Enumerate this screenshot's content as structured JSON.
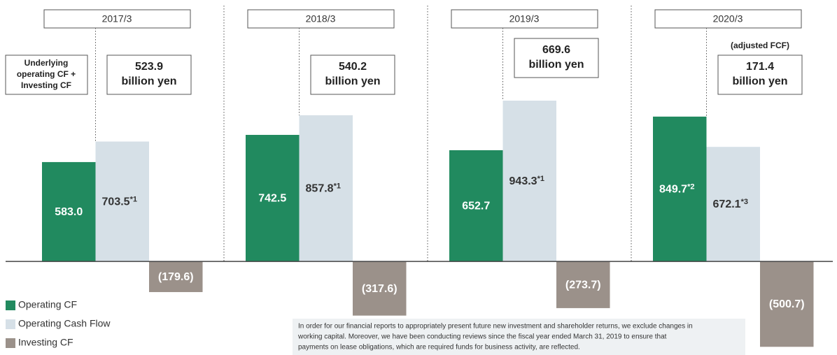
{
  "chart_data": {
    "type": "bar",
    "categories": [
      "2017/3",
      "2018/3",
      "2019/3",
      "2020/3"
    ],
    "ylim": [
      -520,
      1050
    ],
    "series": [
      {
        "name": "Operating CF",
        "color": "#218a5f",
        "label_color": "#ffffff",
        "values": [
          583.0,
          742.5,
          652.7,
          849.7
        ],
        "value_labels": [
          "583.0",
          "742.5",
          "652.7",
          "849.7"
        ],
        "footnotes": [
          null,
          null,
          null,
          "*2"
        ]
      },
      {
        "name": "Operating Cash Flow",
        "color": "#d6e0e7",
        "label_color": "#333333",
        "values": [
          703.5,
          857.8,
          943.3,
          672.1
        ],
        "value_labels": [
          "703.5",
          "857.8",
          "943.3",
          "672.1"
        ],
        "footnotes": [
          "*1",
          "*1",
          "*1",
          "*3"
        ]
      },
      {
        "name": "Investing CF",
        "color": "#9b918a",
        "label_color": "#ffffff",
        "values": [
          -179.6,
          -317.6,
          -273.7,
          -500.7
        ],
        "value_labels": [
          "(179.6)",
          "(317.6)",
          "(273.7)",
          "(500.7)"
        ],
        "footnotes": [
          null,
          null,
          null,
          null
        ]
      }
    ],
    "annotations": [
      {
        "lines": [
          "523.9",
          "billion yen"
        ]
      },
      {
        "lines": [
          "540.2",
          "billion yen"
        ]
      },
      {
        "lines": [
          "669.6",
          "billion yen"
        ]
      },
      {
        "lines": [
          "171.4",
          "billion yen"
        ],
        "caption": "(adjusted FCF)"
      }
    ],
    "side_label": [
      "Underlying",
      "operating CF +",
      "Investing CF"
    ],
    "note": [
      "In order for our financial reports to appropriately present future new investment and shareholder returns, we exclude changes in",
      "working capital. Moreover, we have been conducting reviews since the fiscal year ended March 31, 2019 to ensure that",
      "payments on lease obligations, which are required funds for business activity, are reflected."
    ]
  }
}
